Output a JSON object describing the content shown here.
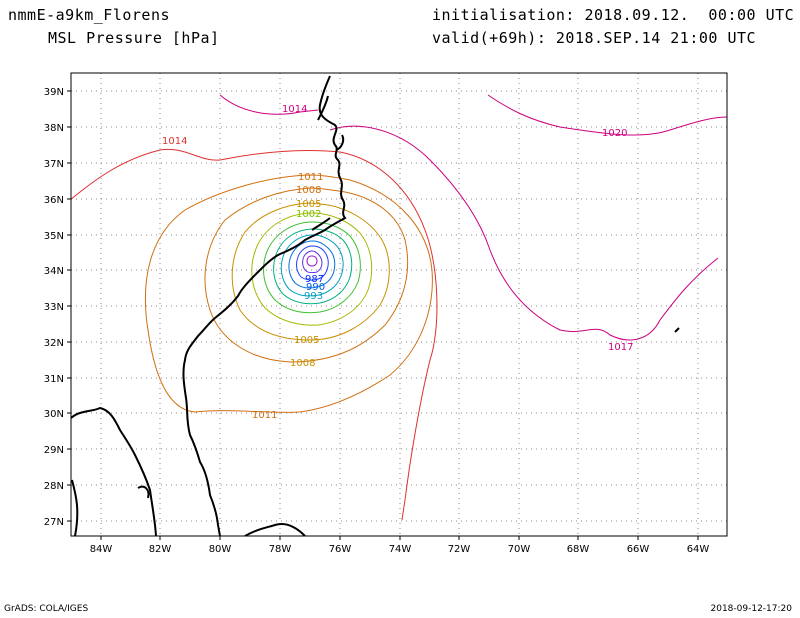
{
  "header": {
    "model": "nmmE-a9km_Florens",
    "field": "MSL Pressure [hPa]",
    "init": "initialisation: 2018.09.12.  00:00 UTC",
    "valid": "valid(+69h): 2018.SEP.14 21:00 UTC"
  },
  "footer": {
    "software": "GrADS: COLA/IGES",
    "created": "2018-09-12-17:20"
  },
  "axes": {
    "lon_labels": [
      "84W",
      "82W",
      "80W",
      "78W",
      "76W",
      "74W",
      "72W",
      "70W",
      "68W",
      "66W",
      "64W"
    ],
    "lat_labels": [
      "39N",
      "38N",
      "37N",
      "36N",
      "35N",
      "34N",
      "33N",
      "32N",
      "31N",
      "30N",
      "29N",
      "28N",
      "27N"
    ]
  },
  "contour_labels": [
    {
      "text": "1014",
      "color": "#e03030"
    },
    {
      "text": "1014",
      "color": "#cc0080"
    },
    {
      "text": "1020",
      "color": "#cc0080"
    },
    {
      "text": "1017",
      "color": "#cc0080"
    },
    {
      "text": "1011",
      "color": "#d07010"
    },
    {
      "text": "1011",
      "color": "#d07010"
    },
    {
      "text": "1008",
      "color": "#d07010"
    },
    {
      "text": "1008",
      "color": "#c89000"
    },
    {
      "text": "1005",
      "color": "#c89000"
    },
    {
      "text": "1005",
      "color": "#c89000"
    },
    {
      "text": "1002",
      "color": "#80c000"
    },
    {
      "text": "993",
      "color": "#00a0c0"
    },
    {
      "text": "990",
      "color": "#0060e0"
    },
    {
      "text": "987",
      "color": "#0030ff"
    }
  ],
  "colors": {
    "frame": "#000000",
    "grid": "#888888",
    "coast": "#000000"
  }
}
